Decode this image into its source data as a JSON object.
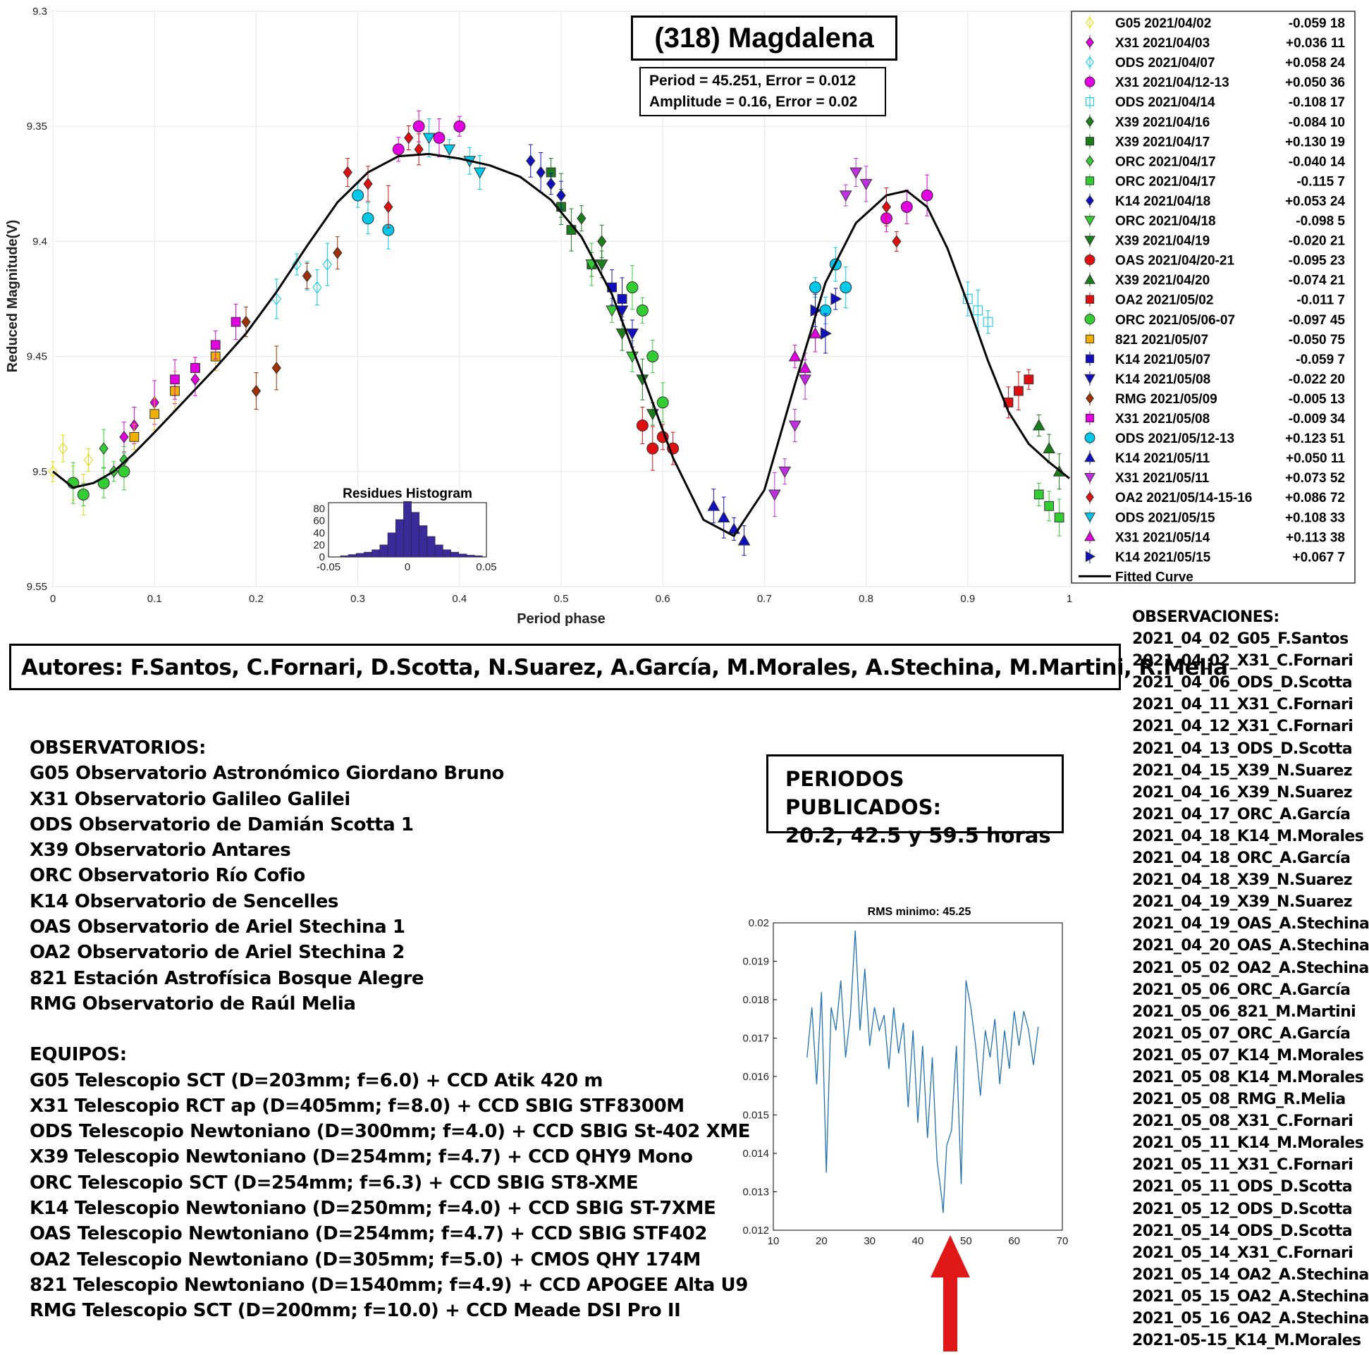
{
  "chart_data": [
    {
      "type": "scatter",
      "title": "(318) Magdalena",
      "annotation": [
        "Period =  45.251, Error = 0.012",
        "Amplitude = 0.16, Error = 0.02"
      ],
      "xlabel": "Period phase",
      "ylabel": "Reduced Magnitude(V)",
      "xlim": [
        0,
        1
      ],
      "ylim": [
        9.55,
        9.3
      ],
      "y_reversed": true,
      "grid": true,
      "legend_position": "right-outside",
      "x_ticks": [
        "0",
        "0.1",
        "0.2",
        "0.3",
        "0.4",
        "0.5",
        "0.6",
        "0.7",
        "0.8",
        "0.9",
        "1"
      ],
      "y_ticks": [
        "9.3",
        "9.35",
        "9.4",
        "9.45",
        "9.5",
        "9.55"
      ],
      "series": [
        {
          "name": "G05 2021/04/02",
          "offset": "-0.059 18",
          "color": "#e6d800",
          "marker": "diamond-open",
          "x": [
            0.0,
            0.01,
            0.02,
            0.03,
            0.035
          ],
          "y": [
            9.5,
            9.49,
            9.505,
            9.51,
            9.495
          ]
        },
        {
          "name": "X31 2021/04/03",
          "offset": "+0.036 11",
          "color": "#e000e0",
          "marker": "diamond",
          "x": [
            0.07,
            0.08,
            0.1,
            0.12,
            0.14
          ],
          "y": [
            9.485,
            9.48,
            9.47,
            9.465,
            9.46
          ]
        },
        {
          "name": "ODS 2021/04/07",
          "offset": "+0.058 24",
          "color": "#00c8e8",
          "marker": "diamond-open",
          "x": [
            0.22,
            0.24,
            0.25,
            0.26,
            0.27
          ],
          "y": [
            9.425,
            9.41,
            9.415,
            9.42,
            9.41
          ]
        },
        {
          "name": "X31 2021/04/12-13",
          "offset": "+0.050 36",
          "color": "#e000e0",
          "marker": "circle",
          "x": [
            0.34,
            0.36,
            0.38,
            0.4,
            0.82,
            0.84,
            0.86
          ],
          "y": [
            9.36,
            9.35,
            9.355,
            9.35,
            9.39,
            9.385,
            9.38
          ]
        },
        {
          "name": "ODS 2021/04/14",
          "offset": "-0.108 17",
          "color": "#00c8e8",
          "marker": "square-open",
          "x": [
            0.9,
            0.91,
            0.92
          ],
          "y": [
            9.425,
            9.43,
            9.435
          ]
        },
        {
          "name": "X39 2021/04/16",
          "offset": "-0.084 10",
          "color": "#1a7f1a",
          "marker": "diamond",
          "x": [
            0.5,
            0.52,
            0.54
          ],
          "y": [
            9.38,
            9.39,
            9.4
          ]
        },
        {
          "name": "X39 2021/04/17",
          "offset": "+0.130 19",
          "color": "#1a7f1a",
          "marker": "square",
          "x": [
            0.49,
            0.5,
            0.51,
            0.53
          ],
          "y": [
            9.37,
            9.385,
            9.395,
            9.41
          ]
        },
        {
          "name": "ORC 2021/04/17",
          "offset": "-0.040 14",
          "color": "#33cc33",
          "marker": "diamond",
          "x": [
            0.05,
            0.06,
            0.07
          ],
          "y": [
            9.49,
            9.5,
            9.495
          ]
        },
        {
          "name": "ORC 2021/04/17",
          "offset": "-0.115  7",
          "color": "#33cc33",
          "marker": "square",
          "x": [
            0.97,
            0.98,
            0.99
          ],
          "y": [
            9.51,
            9.515,
            9.52
          ]
        },
        {
          "name": "K14 2021/04/18",
          "offset": "+0.053 24",
          "color": "#1010c0",
          "marker": "diamond",
          "x": [
            0.47,
            0.48,
            0.49,
            0.5
          ],
          "y": [
            9.365,
            9.37,
            9.375,
            9.38
          ]
        },
        {
          "name": "ORC 2021/04/18",
          "offset": "-0.098  5",
          "color": "#33cc33",
          "marker": "triangle-down",
          "x": [
            0.53,
            0.55,
            0.57
          ],
          "y": [
            9.41,
            9.43,
            9.45
          ]
        },
        {
          "name": "X39 2021/04/19",
          "offset": "-0.020 21",
          "color": "#1a7f1a",
          "marker": "triangle-down",
          "x": [
            0.54,
            0.56,
            0.58,
            0.59
          ],
          "y": [
            9.41,
            9.44,
            9.46,
            9.475
          ]
        },
        {
          "name": "OAS 2021/04/20-21",
          "offset": "-0.095 23",
          "color": "#e01010",
          "marker": "circle",
          "x": [
            0.58,
            0.59,
            0.6,
            0.61
          ],
          "y": [
            9.48,
            9.49,
            9.485,
            9.49
          ]
        },
        {
          "name": "X39 2021/04/20",
          "offset": "-0.074 21",
          "color": "#1a7f1a",
          "marker": "triangle",
          "x": [
            0.97,
            0.98,
            0.99
          ],
          "y": [
            9.48,
            9.49,
            9.5
          ]
        },
        {
          "name": "OA2 2021/05/02",
          "offset": "-0.011  7",
          "color": "#e01010",
          "marker": "square",
          "x": [
            0.94,
            0.95,
            0.96
          ],
          "y": [
            9.47,
            9.465,
            9.46
          ]
        },
        {
          "name": "ORC 2021/05/06-07",
          "offset": "-0.097 45",
          "color": "#33cc33",
          "marker": "circle",
          "x": [
            0.02,
            0.03,
            0.05,
            0.07,
            0.57,
            0.58,
            0.59,
            0.6
          ],
          "y": [
            9.505,
            9.51,
            9.505,
            9.5,
            9.42,
            9.43,
            9.45,
            9.47
          ]
        },
        {
          "name": "821 2021/05/07",
          "offset": "-0.050 75",
          "color": "#f0b000",
          "marker": "square",
          "x": [
            0.08,
            0.1,
            0.12,
            0.14,
            0.16
          ],
          "y": [
            9.485,
            9.475,
            9.465,
            9.455,
            9.45
          ]
        },
        {
          "name": "K14 2021/05/07",
          "offset": "-0.059  7",
          "color": "#1010c0",
          "marker": "square",
          "x": [
            0.55,
            0.56
          ],
          "y": [
            9.42,
            9.425
          ]
        },
        {
          "name": "K14 2021/05/08",
          "offset": "-0.022 20",
          "color": "#1010c0",
          "marker": "triangle-down",
          "x": [
            0.56,
            0.57
          ],
          "y": [
            9.43,
            9.44
          ]
        },
        {
          "name": "RMG 2021/05/09",
          "offset": "-0.005 13",
          "color": "#a03000",
          "marker": "diamond",
          "x": [
            0.19,
            0.2,
            0.22,
            0.25,
            0.28
          ],
          "y": [
            9.435,
            9.465,
            9.455,
            9.415,
            9.405
          ]
        },
        {
          "name": "X31 2021/05/08",
          "offset": "-0.009 34",
          "color": "#e000e0",
          "marker": "square",
          "x": [
            0.12,
            0.14,
            0.16,
            0.18
          ],
          "y": [
            9.46,
            9.455,
            9.445,
            9.435
          ]
        },
        {
          "name": "ODS 2021/05/12-13",
          "offset": "+0.123 51",
          "color": "#00c8e8",
          "marker": "circle",
          "x": [
            0.3,
            0.31,
            0.33,
            0.75,
            0.76,
            0.77,
            0.78
          ],
          "y": [
            9.38,
            9.39,
            9.395,
            9.42,
            9.43,
            9.41,
            9.42
          ]
        },
        {
          "name": "K14 2021/05/11",
          "offset": "+0.050 11",
          "color": "#1010c0",
          "marker": "triangle",
          "x": [
            0.65,
            0.66,
            0.67,
            0.68
          ],
          "y": [
            9.515,
            9.52,
            9.525,
            9.53
          ]
        },
        {
          "name": "X31 2021/05/11",
          "offset": "+0.073 52",
          "color": "#c030e0",
          "marker": "triangle-down",
          "x": [
            0.71,
            0.72,
            0.73,
            0.74,
            0.78,
            0.79,
            0.8
          ],
          "y": [
            9.51,
            9.5,
            9.48,
            9.46,
            9.38,
            9.37,
            9.375
          ]
        },
        {
          "name": "OA2 2021/05/14-15-16",
          "offset": "+0.086 72",
          "color": "#e01010",
          "marker": "diamond",
          "x": [
            0.29,
            0.31,
            0.33,
            0.35,
            0.36,
            0.82,
            0.83
          ],
          "y": [
            9.37,
            9.375,
            9.385,
            9.355,
            9.36,
            9.385,
            9.4
          ]
        },
        {
          "name": "ODS 2021/05/15",
          "offset": "+0.108 33",
          "color": "#00c8e8",
          "marker": "triangle-down",
          "x": [
            0.37,
            0.39,
            0.41,
            0.42
          ],
          "y": [
            9.355,
            9.36,
            9.365,
            9.37
          ]
        },
        {
          "name": "X31 2021/05/14",
          "offset": "+0.113 38",
          "color": "#e000e0",
          "marker": "triangle",
          "x": [
            0.73,
            0.74,
            0.75
          ],
          "y": [
            9.45,
            9.455,
            9.44
          ]
        },
        {
          "name": "K14 2021/05/15",
          "offset": "+0.067  7",
          "color": "#1010c0",
          "marker": "triangle-right",
          "x": [
            0.75,
            0.76,
            0.77
          ],
          "y": [
            9.43,
            9.44,
            9.425
          ]
        }
      ],
      "fitted_curve": {
        "name": "Fitted Curve",
        "color": "#000000",
        "x": [
          0,
          0.02,
          0.04,
          0.06,
          0.08,
          0.1,
          0.13,
          0.16,
          0.19,
          0.22,
          0.25,
          0.28,
          0.31,
          0.34,
          0.37,
          0.4,
          0.43,
          0.46,
          0.49,
          0.52,
          0.55,
          0.58,
          0.61,
          0.64,
          0.67,
          0.7,
          0.73,
          0.76,
          0.79,
          0.82,
          0.84,
          0.86,
          0.88,
          0.9,
          0.92,
          0.94,
          0.96,
          0.98,
          1.0
        ],
        "y": [
          9.5,
          9.507,
          9.505,
          9.5,
          9.492,
          9.483,
          9.469,
          9.455,
          9.44,
          9.422,
          9.402,
          9.383,
          9.37,
          9.363,
          9.362,
          9.364,
          9.367,
          9.372,
          9.382,
          9.398,
          9.423,
          9.458,
          9.494,
          9.521,
          9.528,
          9.508,
          9.462,
          9.418,
          9.392,
          9.38,
          9.378,
          9.385,
          9.403,
          9.427,
          9.452,
          9.474,
          9.488,
          9.496,
          9.503
        ]
      }
    },
    {
      "type": "bar",
      "title": "Residues Histogram",
      "x_ticks": [
        "-0.05",
        "0",
        "0.05"
      ],
      "y_ticks": [
        "0",
        "20",
        "40",
        "60",
        "80"
      ],
      "xlim": [
        -0.05,
        0.05
      ],
      "ylim": [
        0,
        90
      ],
      "color": "#3a2a9a",
      "bins": [
        -0.04,
        -0.035,
        -0.03,
        -0.025,
        -0.02,
        -0.015,
        -0.01,
        -0.005,
        0.0,
        0.005,
        0.01,
        0.015,
        0.02,
        0.025,
        0.03,
        0.035,
        0.04,
        0.045
      ],
      "values": [
        2,
        4,
        6,
        8,
        12,
        20,
        40,
        62,
        92,
        74,
        52,
        34,
        20,
        12,
        8,
        5,
        3,
        2
      ]
    },
    {
      "type": "line",
      "title": "RMS minimo: 45.25",
      "xlim": [
        10,
        70
      ],
      "ylim": [
        0.012,
        0.02
      ],
      "x_ticks": [
        "10",
        "20",
        "30",
        "40",
        "50",
        "60",
        "70"
      ],
      "y_ticks": [
        "0.012",
        "0.013",
        "0.014",
        "0.015",
        "0.016",
        "0.017",
        "0.018",
        "0.019",
        "0.02"
      ],
      "color": "#1f6fb5",
      "x": [
        17,
        18,
        19,
        20,
        21,
        22,
        23,
        24,
        25,
        26,
        27,
        28,
        29,
        30,
        31,
        32,
        33,
        34,
        35,
        36,
        37,
        38,
        39,
        40,
        41,
        42,
        43,
        44,
        45,
        45.25,
        46,
        47,
        48,
        49,
        50,
        51,
        52,
        53,
        54,
        55,
        56,
        57,
        58,
        59,
        60,
        61,
        62,
        63,
        64,
        65
      ],
      "y": [
        0.0165,
        0.0178,
        0.0158,
        0.0182,
        0.0135,
        0.0178,
        0.0172,
        0.0185,
        0.0165,
        0.0176,
        0.0198,
        0.0172,
        0.0188,
        0.0168,
        0.0178,
        0.0172,
        0.0176,
        0.0162,
        0.0178,
        0.0166,
        0.0174,
        0.0152,
        0.0172,
        0.0148,
        0.0168,
        0.0144,
        0.0165,
        0.0138,
        0.0128,
        0.01245,
        0.0142,
        0.0146,
        0.0168,
        0.0132,
        0.0185,
        0.0178,
        0.0168,
        0.0155,
        0.0172,
        0.0165,
        0.0175,
        0.0158,
        0.0172,
        0.0162,
        0.0177,
        0.0168,
        0.0177,
        0.0172,
        0.0163,
        0.0173
      ]
    }
  ],
  "authors": "Autores: F.Santos, C.Fornari, D.Scotta, N.Suarez, A.García, M.Morales, A.Stechina, M.Martini, R.Melia",
  "publicados": {
    "line1": "PERIODOS PUBLICADOS:",
    "line2": "20.2, 42.5 y 59.5 horas"
  },
  "observatorios": {
    "heading": "OBSERVATORIOS:",
    "items": [
      "G05 Observatorio Astronómico Giordano Bruno",
      "X31 Observatorio Galileo Galilei",
      "ODS Observatorio de Damián Scotta 1",
      "X39 Observatorio Antares",
      "ORC Observatorio Río Cofio",
      "K14 Observatorio de Sencelles",
      "OAS Observatorio de Ariel Stechina 1",
      "OA2 Observatorio de Ariel Stechina 2",
      "821 Estación Astrofísica Bosque Alegre",
      "RMG Observatorio de Raúl Melia"
    ]
  },
  "equipos": {
    "heading": "EQUIPOS:",
    "items": [
      "G05 Telescopio SCT (D=203mm; f=6.0) + CCD Atik 420 m",
      "X31 Telescopio RCT ap (D=405mm; f=8.0) + CCD SBIG STF8300M",
      "ODS Telescopio Newtoniano (D=300mm; f=4.0) + CCD SBIG St-402 XME",
      "X39 Telescopio Newtoniano (D=254mm; f=4.7) + CCD QHY9 Mono",
      "ORC Telescopio SCT (D=254mm; f=6.3) + CCD SBIG ST8-XME",
      "K14 Telescopio Newtoniano (D=250mm; f=4.0) + CCD SBIG ST-7XME",
      "OAS Telescopio Newtoniano (D=254mm; f=4.7) + CCD SBIG STF402",
      "OA2 Telescopio Newtoniano (D=305mm; f=5.0) + CMOS QHY 174M",
      "821 Telescopio Newtoniano (D=1540mm; f=4.9) + CCD APOGEE Alta U9",
      "RMG Telescopio SCT (D=200mm; f=10.0) + CCD Meade DSI Pro II"
    ]
  },
  "observaciones": {
    "heading": "OBSERVACIONES:",
    "items": [
      "2021_04_02_G05_F.Santos",
      "2021_04_02_X31_C.Fornari",
      "2021_04_06_ODS_D.Scotta",
      "2021_04_11_X31_C.Fornari",
      "2021_04_12_X31_C.Fornari",
      "2021_04_13_ODS_D.Scotta",
      "2021_04_15_X39_N.Suarez",
      "2021_04_16_X39_N.Suarez",
      "2021_04_17_ORC_A.García",
      "2021_04_18_K14_M.Morales",
      "2021_04_18_ORC_A.García",
      "2021_04_18_X39_N.Suarez",
      "2021_04_19_X39_N.Suarez",
      "2021_04_19_OAS_A.Stechina",
      "2021_04_20_OAS_A.Stechina",
      "2021_05_02_OA2_A.Stechina",
      "2021_05_06_ORC_A.García",
      "2021_05_06_821_M.Martini",
      "2021_05_07_ORC_A.García",
      "2021_05_07_K14_M.Morales",
      "2021_05_08_K14_M.Morales",
      "2021_05_08_RMG_R.Melia",
      "2021_05_08_X31_C.Fornari",
      "2021_05_11_K14_M.Morales",
      "2021_05_11_X31_C.Fornari",
      "2021_05_11_ODS_D.Scotta",
      "2021_05_12_ODS_D.Scotta",
      "2021_05_14_ODS_D.Scotta",
      "2021_05_14_X31_C.Fornari",
      "2021_05_14_OA2_A.Stechina",
      "2021_05_15_OA2_A.Stechina",
      "2021_05_16_OA2_A.Stechina",
      "2021-05-15_K14_M.Morales"
    ]
  },
  "arrow_color": "#e01818"
}
